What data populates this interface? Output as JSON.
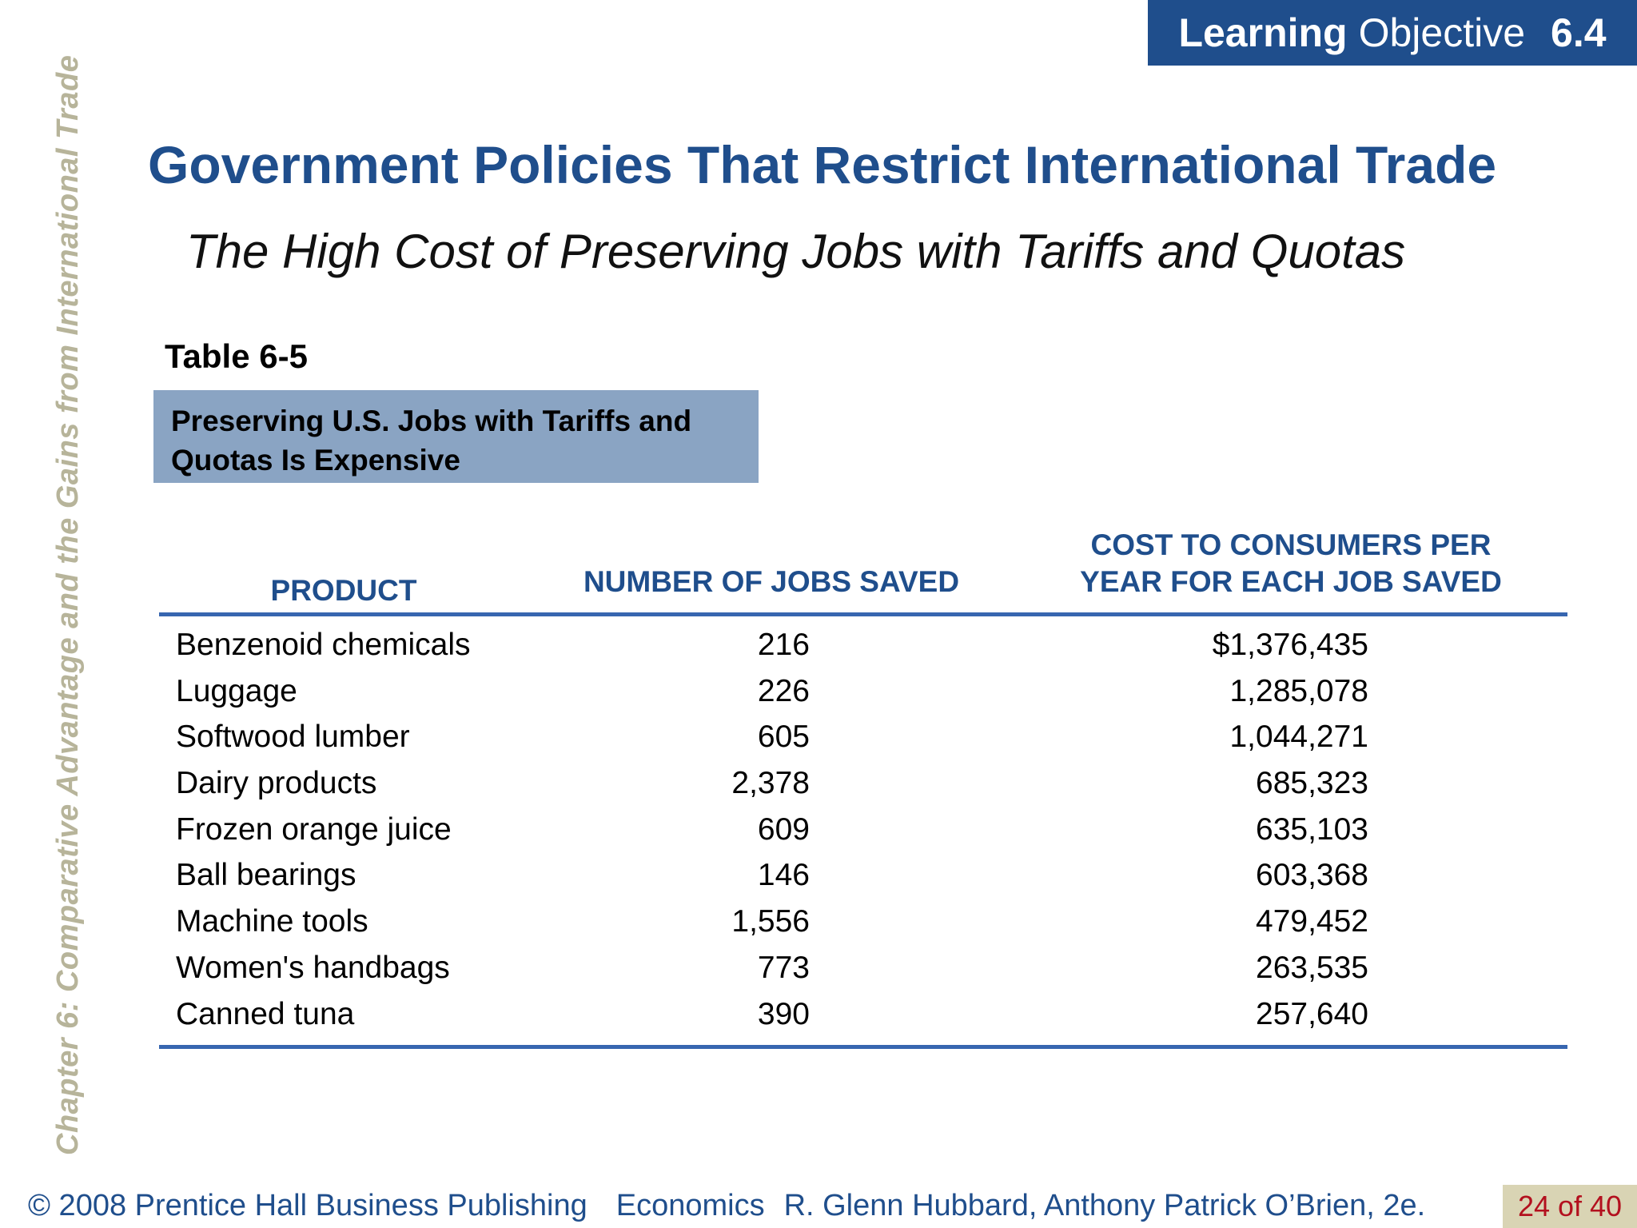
{
  "learning_objective": {
    "word1": "Learning",
    "word2": "Objective",
    "number": "6.4"
  },
  "side_label": "Chapter 6:  Comparative Advantage and the Gains from International Trade",
  "title": "Government Policies That Restrict International Trade",
  "subtitle": "The High Cost of Preserving Jobs with Tariffs and Quotas",
  "table": {
    "number": "Table 6-5",
    "caption_line1": "Preserving U.S. Jobs with Tariffs and",
    "caption_line2": "Quotas Is Expensive",
    "headers": {
      "product": "PRODUCT",
      "jobs": "NUMBER OF JOBS SAVED",
      "cost_line1": "COST TO CONSUMERS PER",
      "cost_line2": "YEAR FOR EACH JOB SAVED"
    },
    "rows": [
      {
        "product": "Benzenoid chemicals",
        "jobs": "216",
        "cost": "$1,376,435"
      },
      {
        "product": "Luggage",
        "jobs": "226",
        "cost": "1,285,078"
      },
      {
        "product": "Softwood lumber",
        "jobs": "605",
        "cost": "1,044,271"
      },
      {
        "product": "Dairy products",
        "jobs": "2,378",
        "cost": "685,323"
      },
      {
        "product": "Frozen orange juice",
        "jobs": "609",
        "cost": "635,103"
      },
      {
        "product": "Ball bearings",
        "jobs": "146",
        "cost": "603,368"
      },
      {
        "product": "Machine tools",
        "jobs": "1,556",
        "cost": "479,452"
      },
      {
        "product": "Women's handbags",
        "jobs": "773",
        "cost": "263,535"
      },
      {
        "product": "Canned tuna",
        "jobs": "390",
        "cost": "257,640"
      }
    ]
  },
  "footer": {
    "copyright": "© 2008 Prentice Hall Business Publishing",
    "book": "Economics",
    "authors": "R. Glenn Hubbard, Anthony Patrick O’Brien, 2e.",
    "page": "24 of 40"
  },
  "colors": {
    "primary_blue": "#1f4e8c",
    "caption_bg": "#8aa4c3",
    "side_text": "#b7b49a",
    "page_badge_bg": "#d9d4b4",
    "page_badge_text": "#b3101e"
  }
}
